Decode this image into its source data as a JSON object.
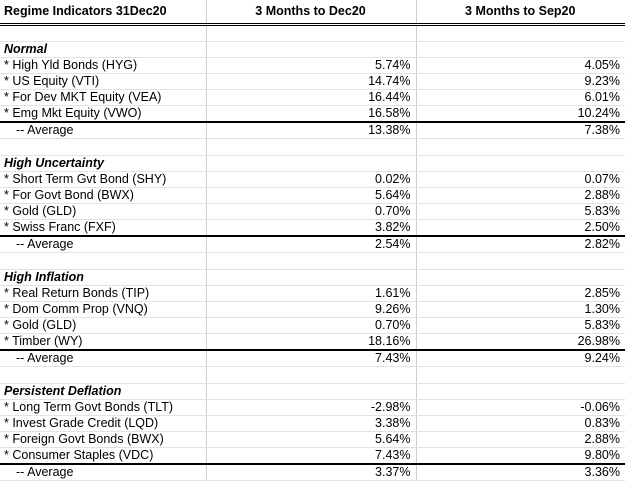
{
  "header": {
    "title": "Regime Indicators 31Dec20",
    "col1": "3 Months to Dec20",
    "col2": "3 Months to Sep20"
  },
  "sections": [
    {
      "name": "Normal",
      "rows": [
        {
          "label": "* High Yld Bonds (HYG)",
          "dec": "5.74%",
          "sep": "4.05%"
        },
        {
          "label": "* US Equity (VTI)",
          "dec": "14.74%",
          "sep": "9.23%"
        },
        {
          "label": "* For Dev MKT Equity (VEA)",
          "dec": "16.44%",
          "sep": "6.01%"
        },
        {
          "label": "* Emg Mkt Equity (VWO)",
          "dec": "16.58%",
          "sep": "10.24%"
        }
      ],
      "average": {
        "label": "-- Average",
        "dec": "13.38%",
        "sep": "7.38%"
      }
    },
    {
      "name": "High Uncertainty",
      "rows": [
        {
          "label": "*  Short Term Gvt Bond (SHY)",
          "dec": "0.02%",
          "sep": "0.07%"
        },
        {
          "label": "*  For Govt Bond (BWX)",
          "dec": "5.64%",
          "sep": "2.88%"
        },
        {
          "label": "*  Gold (GLD)",
          "dec": "0.70%",
          "sep": "5.83%"
        },
        {
          "label": "*  Swiss Franc (FXF)",
          "dec": "3.82%",
          "sep": "2.50%"
        }
      ],
      "average": {
        "label": "-- Average",
        "dec": "2.54%",
        "sep": "2.82%"
      }
    },
    {
      "name": "High Inflation",
      "rows": [
        {
          "label": "*  Real Return Bonds (TIP)",
          "dec": "1.61%",
          "sep": "2.85%"
        },
        {
          "label": "*  Dom Comm Prop (VNQ)",
          "dec": "9.26%",
          "sep": "1.30%"
        },
        {
          "label": "*  Gold (GLD)",
          "dec": "0.70%",
          "sep": "5.83%"
        },
        {
          "label": "*  Timber (WY)",
          "dec": "18.16%",
          "sep": "26.98%"
        }
      ],
      "average": {
        "label": "-- Average",
        "dec": "7.43%",
        "sep": "9.24%"
      }
    },
    {
      "name": "Persistent Deflation",
      "rows": [
        {
          "label": "*  Long Term Govt Bonds (TLT)",
          "dec": "-2.98%",
          "sep": "-0.06%"
        },
        {
          "label": "*  Invest Grade Credit (LQD)",
          "dec": "3.38%",
          "sep": "0.83%"
        },
        {
          "label": "*  Foreign Govt Bonds (BWX)",
          "dec": "5.64%",
          "sep": "2.88%"
        },
        {
          "label": "*  Consumer Staples (VDC)",
          "dec": "7.43%",
          "sep": "9.80%"
        }
      ],
      "average": {
        "label": "-- Average",
        "dec": "3.37%",
        "sep": "3.36%"
      }
    }
  ]
}
